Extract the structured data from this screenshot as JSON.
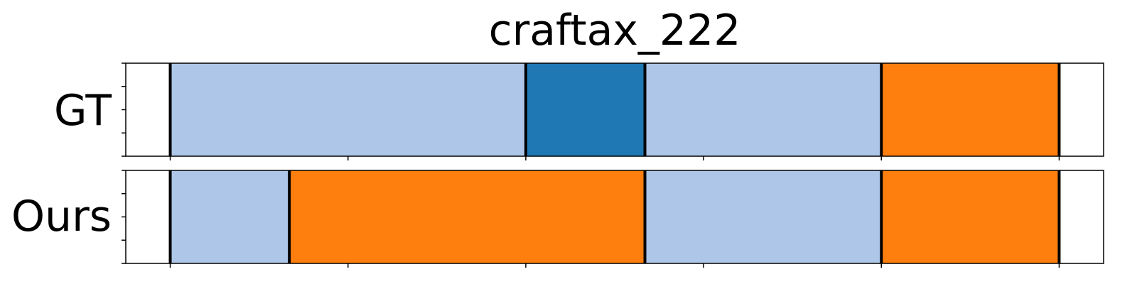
{
  "chart_data": {
    "type": "bar",
    "title": "craftax_222",
    "xlim": [
      0,
      5.5
    ],
    "x_ticks": [
      0.25,
      1.25,
      2.25,
      3.25,
      4.25,
      5.25
    ],
    "rows": [
      {
        "label": "GT",
        "segments": [
          {
            "start": 0.25,
            "end": 2.25,
            "color": "#aec7e8"
          },
          {
            "start": 2.25,
            "end": 2.92,
            "color": "#1f77b4"
          },
          {
            "start": 2.92,
            "end": 4.25,
            "color": "#aec7e8"
          },
          {
            "start": 4.25,
            "end": 5.25,
            "color": "#ff7f0e"
          }
        ]
      },
      {
        "label": "Ours",
        "segments": [
          {
            "start": 0.25,
            "end": 0.92,
            "color": "#aec7e8"
          },
          {
            "start": 0.92,
            "end": 2.92,
            "color": "#ff7f0e"
          },
          {
            "start": 2.92,
            "end": 4.25,
            "color": "#aec7e8"
          },
          {
            "start": 4.25,
            "end": 5.25,
            "color": "#ff7f0e"
          }
        ]
      }
    ]
  }
}
